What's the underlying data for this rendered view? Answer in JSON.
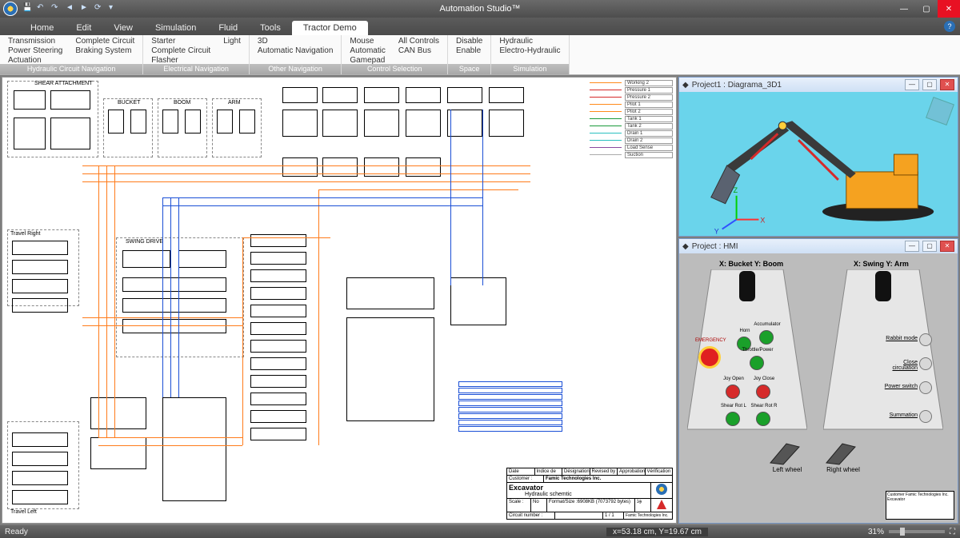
{
  "app": {
    "title": "Automation Studio™"
  },
  "menubar": {
    "tabs": [
      "Home",
      "Edit",
      "View",
      "Simulation",
      "Fluid",
      "Tools",
      "Tractor Demo"
    ],
    "active_index": 6
  },
  "ribbon": {
    "groups": [
      {
        "label": "Hydraulic Circuit Navigation",
        "items": [
          "Transmission",
          "Power Steering",
          "Actuation",
          "Complete Circuit",
          "Braking System"
        ]
      },
      {
        "label": "Electrical Navigation",
        "items": [
          "Starter",
          "Complete Circuit",
          "Flasher",
          "Light"
        ]
      },
      {
        "label": "Other Navigation",
        "items": [
          "3D",
          "Automatic Navigation"
        ]
      },
      {
        "label": "Control Selection",
        "items": [
          "Mouse",
          "Automatic",
          "Gamepad",
          "All Controls",
          "CAN Bus"
        ]
      },
      {
        "label": "Space Motion",
        "items": [
          "Disable",
          "Enable"
        ]
      },
      {
        "label": "Simulation",
        "items": [
          "Hydraulic",
          "Electro-Hydraulic"
        ]
      }
    ]
  },
  "schematic": {
    "section_labels": [
      "SHEAR ATTACHMENT",
      "BUCKET",
      "BOOM",
      "ARM",
      "SWING DRIVE",
      "Travel Right",
      "Travel Left"
    ],
    "legend": [
      {
        "label": "Working 2",
        "color": "#ff8a1a"
      },
      {
        "label": "Pressure 1",
        "color": "#d62a2a"
      },
      {
        "label": "Pressure 2",
        "color": "#d62a2a"
      },
      {
        "label": "Pilot 1",
        "color": "#ff8a1a"
      },
      {
        "label": "Pilot 2",
        "color": "#ff8a1a"
      },
      {
        "label": "Tank 1",
        "color": "#1a9a3a"
      },
      {
        "label": "Tank 2",
        "color": "#1a9a3a"
      },
      {
        "label": "Drain 1",
        "color": "#2ac0c0"
      },
      {
        "label": "Drain 2",
        "color": "#2ac0c0"
      },
      {
        "label": "Load Sense",
        "color": "#8a4aa0"
      },
      {
        "label": "Suction",
        "color": "#aaaaaa"
      }
    ],
    "titleblock": {
      "row_labels": [
        "Date",
        "Indice de",
        "Désignation",
        "Revised by",
        "Approbation",
        "Vérification"
      ],
      "customer_label": "Customer :",
      "customer": "Famic Technologies Inc.",
      "title": "Excavator",
      "subtitle": "Hydraulic schemtic",
      "scale_label": "Scale :",
      "scale_value": "No",
      "format_label": "Format/Size :",
      "format_value": "6908KB (7073792 bytes)",
      "circuit_label": "Circuit number :",
      "page": "1 / 1",
      "footer": "Famic Technologies Inc."
    },
    "colors": {
      "wire_orange": "#ff7b1a",
      "wire_blue": "#1a4fd6",
      "wire_black": "#000000",
      "background": "#ffffff"
    }
  },
  "panels": {
    "diagram3d": {
      "title": "Project1 : Diagrama_3D1",
      "axis_labels": {
        "x": "X",
        "y": "Y",
        "z": "Z"
      },
      "bg_color": "#6ad4eb",
      "machine_colors": {
        "body": "#f5a220",
        "arm": "#3a3a3a",
        "hyd": "#d62a2a",
        "bucket": "#5a6270",
        "track": "#222"
      }
    },
    "hmi": {
      "title": "Project : HMI",
      "left_label": "X: Bucket Y: Boom",
      "right_label": "X: Swing Y: Arm",
      "buttons": {
        "emergency": "EMERGENCY",
        "horn": "Horn",
        "acc": "Accumulator",
        "throttle": "Throttle/Power",
        "jo": "Joy Open",
        "jc": "Joy Close",
        "srl": "Shear Rot L",
        "srr": "Shear Rot R",
        "rabbit": "Rabbit mode",
        "close_circ": "Close circulation",
        "power": "Power switch",
        "summ": "Summation",
        "lw": "Left wheel",
        "rw": "Right wheel"
      },
      "mini_tb": {
        "customer": "Famic Technologies Inc.",
        "title": "Excavator"
      },
      "colors": {
        "bg": "#bcbcbc",
        "panel": "#e6e6e6",
        "estop": "#e02020",
        "green": "#1aa02a",
        "red": "#d62a2a",
        "silver": "#d8d8d8"
      }
    }
  },
  "statusbar": {
    "ready": "Ready",
    "coords": "x=53.18 cm, Y=19.67 cm",
    "zoom": "31%",
    "zoom_pct": 31
  }
}
